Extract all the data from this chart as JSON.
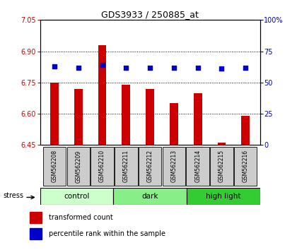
{
  "title": "GDS3933 / 250885_at",
  "samples": [
    "GSM562208",
    "GSM562209",
    "GSM562210",
    "GSM562211",
    "GSM562212",
    "GSM562213",
    "GSM562214",
    "GSM562215",
    "GSM562216"
  ],
  "transformed_counts": [
    6.75,
    6.72,
    6.93,
    6.74,
    6.72,
    6.65,
    6.7,
    6.46,
    6.59
  ],
  "percentile_ranks": [
    63,
    62,
    64,
    62,
    62,
    62,
    62,
    61,
    62
  ],
  "ylim_left": [
    6.45,
    7.05
  ],
  "ylim_right": [
    0,
    100
  ],
  "yticks_left": [
    6.45,
    6.6,
    6.75,
    6.9,
    7.05
  ],
  "yticks_right": [
    0,
    25,
    50,
    75,
    100
  ],
  "ytick_labels_right": [
    "0",
    "25",
    "50",
    "75",
    "100%"
  ],
  "groups": [
    {
      "label": "control",
      "indices": [
        0,
        1,
        2
      ],
      "color": "#ccffcc"
    },
    {
      "label": "dark",
      "indices": [
        3,
        4,
        5
      ],
      "color": "#88ee88"
    },
    {
      "label": "high light",
      "indices": [
        6,
        7,
        8
      ],
      "color": "#33cc33"
    }
  ],
  "bar_color": "#cc0000",
  "dot_color": "#0000cc",
  "bar_bottom": 6.45,
  "label_color_left": "#cc0000",
  "label_color_right": "#0000cc",
  "legend_red_label": "transformed count",
  "legend_blue_label": "percentile rank within the sample",
  "sample_box_color": "#cccccc",
  "plot_bg": "#ffffff",
  "fig_bg": "#ffffff"
}
